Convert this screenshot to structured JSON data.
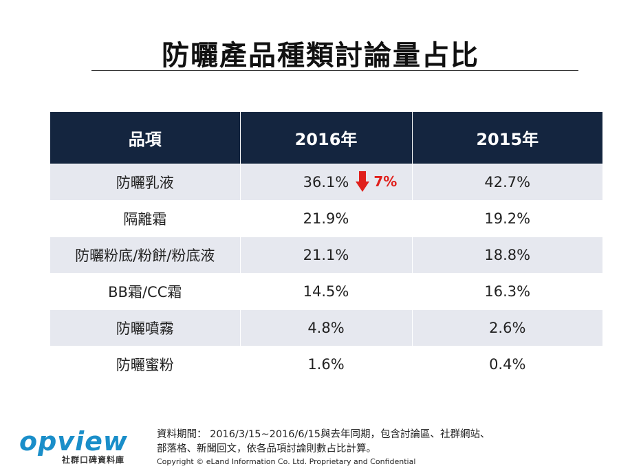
{
  "title": "防曬產品種類討論量占比",
  "table": {
    "headers": [
      "品項",
      "2016年",
      "2015年"
    ],
    "rows": [
      {
        "item": "防曬乳液",
        "y2016": "36.1%",
        "y2015": "42.7%"
      },
      {
        "item": "隔離霜",
        "y2016": "21.9%",
        "y2015": "19.2%"
      },
      {
        "item": "防曬粉底/粉餅/粉底液",
        "y2016": "21.1%",
        "y2015": "18.8%"
      },
      {
        "item": "BB霜/CC霜",
        "y2016": "14.5%",
        "y2015": "16.3%"
      },
      {
        "item": "防曬噴霧",
        "y2016": "4.8%",
        "y2015": "2.6%"
      },
      {
        "item": "防曬蜜粉",
        "y2016": "1.6%",
        "y2015": "0.4%"
      }
    ],
    "change": {
      "value": "7%",
      "direction": "down",
      "color": "#e0201c"
    },
    "header_color": "#14253f",
    "stripe_color": "#e6e8ef"
  },
  "footer": {
    "logo_text": "opview",
    "logo_subtitle": "社群口碑資料庫",
    "note_line1": "資料期間： 2016/3/15~2016/6/15與去年同期，包含討論區、社群網站、",
    "note_line2": "部落格、新聞回文，依各品項討論則數占比計算。",
    "copyright": "Copyright © eLand Information Co. Ltd. Proprietary and Confidential"
  }
}
